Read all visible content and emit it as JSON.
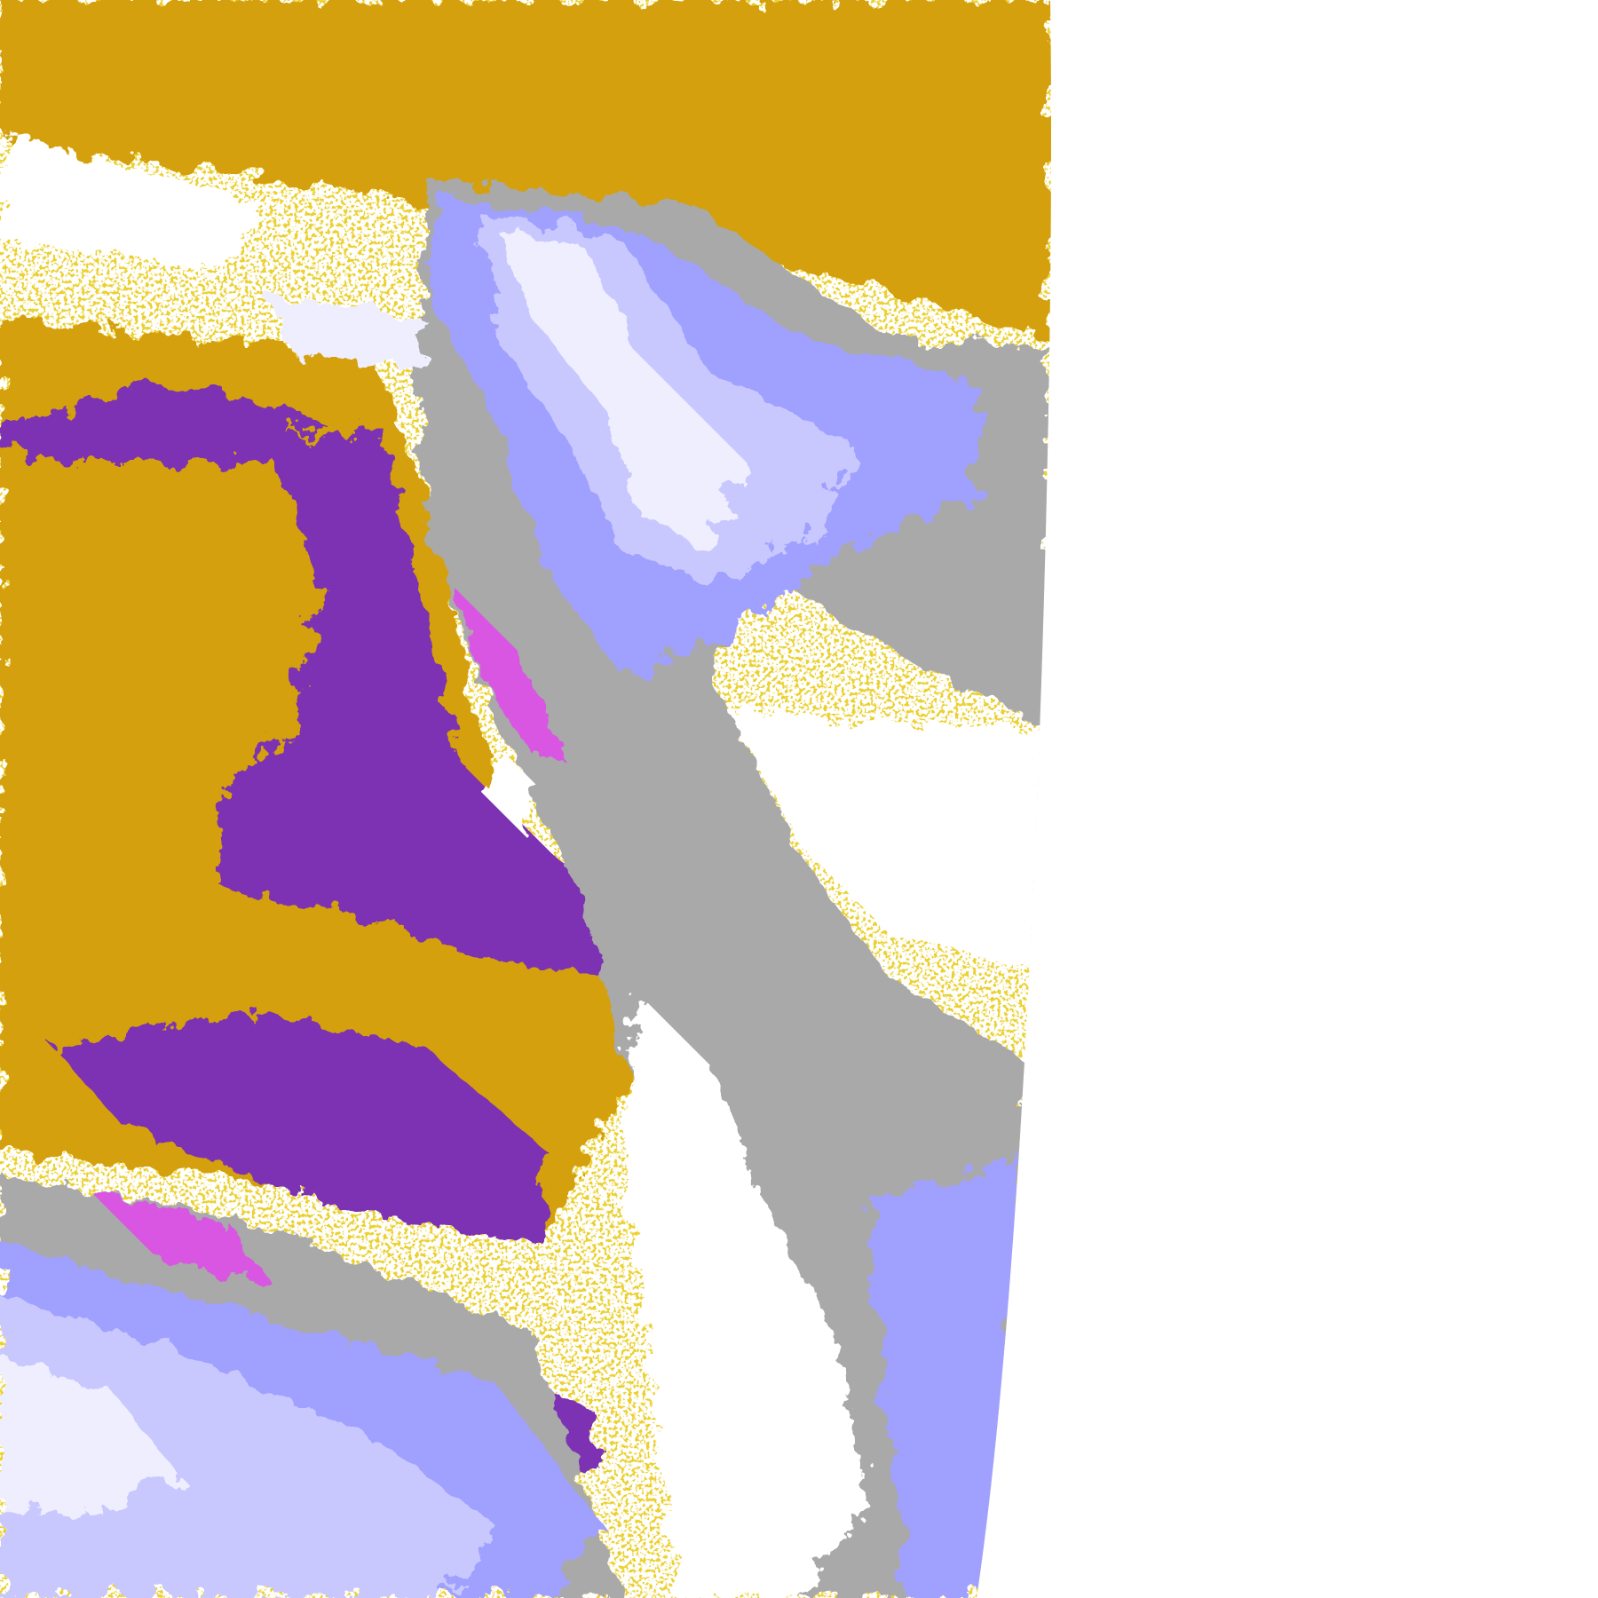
{
  "image": {
    "kind": "satellite cloud-classification imagery",
    "background": "#ffffff",
    "palette": {
      "gold": "#d4a007",
      "purple": "#7b33b3",
      "magenta": "#d957e3",
      "lavender_light": "#eeeeff",
      "lavender": "#c8c8ff",
      "periwinkle": "#a0a0ff",
      "gray": "#a9a9a9"
    }
  }
}
